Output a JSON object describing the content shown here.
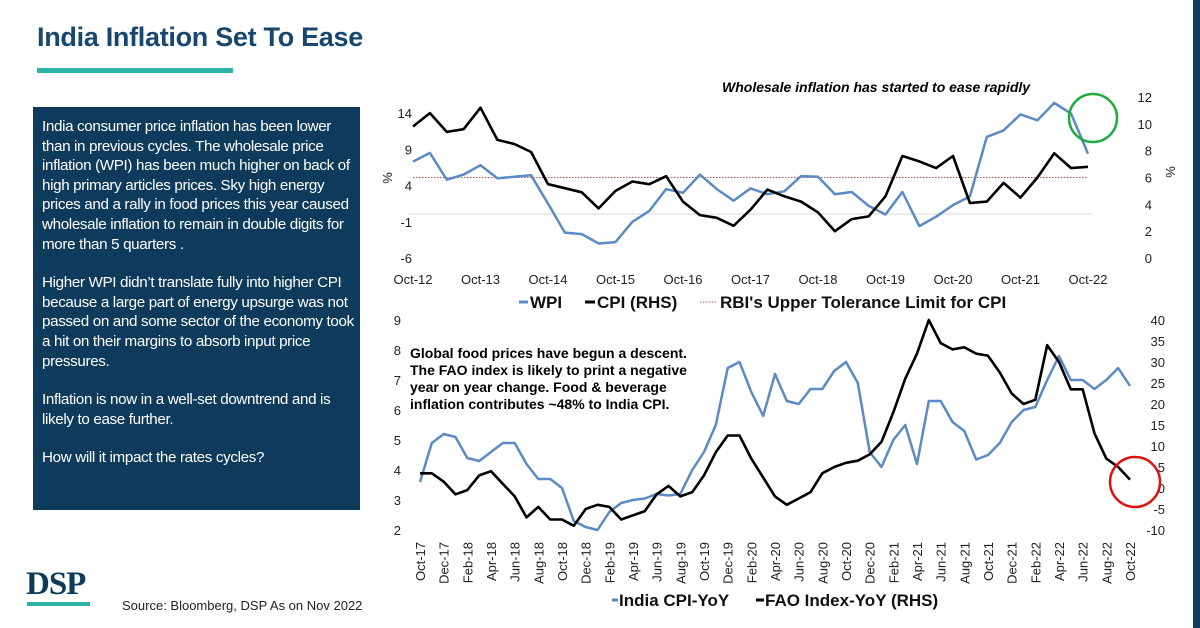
{
  "header": {
    "title": "India Inflation Set To Ease"
  },
  "panel": {
    "paragraphs": [
      "India consumer price inflation has been lower than in previous cycles. The wholesale price inflation (WPI) has been much higher on back of high primary articles prices. Sky high energy prices and a rally in food prices this year caused wholesale inflation to remain in double digits for more than 5 quarters .",
      "Higher WPI didn’t translate fully into higher CPI because a large part of energy upsurge was not passed on and some sector of the economy took a hit on their margins to absorb input price pressures.",
      "Inflation is now in a well-set downtrend and is likely to ease further.",
      "How will it impact the rates cycles?"
    ]
  },
  "footer": {
    "logo": "DSP",
    "source": "Source: Bloomberg, DSP As on Nov 2022"
  },
  "colors": {
    "blue": "#5b8ac4",
    "black": "#000000",
    "limit": "#c0504d",
    "green": "#1faa3c",
    "red": "#e01010",
    "navy": "#0e3a5c",
    "teal": "#2bb5a6"
  },
  "chart_data": [
    {
      "type": "line",
      "title": "Wholesale inflation has started to ease rapidly",
      "frequency": "quarterly samples, Oct-12 to Oct-22",
      "x_tick_labels": [
        "Oct-12",
        "Oct-13",
        "Oct-14",
        "Oct-15",
        "Oct-16",
        "Oct-17",
        "Oct-18",
        "Oct-19",
        "Oct-20",
        "Oct-21",
        "Oct-22"
      ],
      "ylabel": "%",
      "y2label": "%",
      "ylim": [
        -6,
        14
      ],
      "yticks": [
        -6,
        -1,
        4,
        9,
        14
      ],
      "y2lim": [
        0,
        12
      ],
      "y2ticks": [
        0,
        2,
        4,
        6,
        8,
        10,
        12
      ],
      "series": [
        {
          "name": "WPI",
          "axis": "left",
          "values": [
            7.3,
            8.5,
            4.8,
            5.5,
            6.8,
            5.0,
            5.2,
            5.4,
            1.5,
            -2.5,
            -2.7,
            -4.0,
            -3.8,
            -1.0,
            0.5,
            3.5,
            3.0,
            5.5,
            3.5,
            1.9,
            3.6,
            2.8,
            3.2,
            5.3,
            5.2,
            2.8,
            3.1,
            1.2,
            0.0,
            3.1,
            -1.6,
            -0.3,
            1.3,
            2.5,
            10.7,
            11.6,
            13.8,
            13.0,
            15.4,
            13.9,
            8.4
          ]
        },
        {
          "name": "CPI (RHS)",
          "axis": "right",
          "values": [
            9.8,
            10.8,
            9.4,
            9.6,
            11.2,
            8.8,
            8.5,
            7.9,
            5.5,
            5.2,
            4.9,
            3.7,
            5.0,
            5.7,
            5.5,
            6.1,
            4.2,
            3.2,
            3.0,
            2.4,
            3.6,
            5.1,
            4.6,
            4.2,
            3.4,
            2.0,
            2.9,
            3.1,
            4.6,
            7.6,
            7.2,
            6.7,
            7.6,
            4.1,
            4.2,
            5.6,
            4.5,
            6.0,
            7.8,
            6.7,
            6.8
          ]
        }
      ],
      "reference_line": {
        "name": "RBI's Upper Tolerance Limit for CPI",
        "axis": "right",
        "value": 6
      },
      "legend": [
        "WPI",
        "CPI (RHS)",
        "RBI's Upper Tolerance Limit for CPI"
      ],
      "legend_position": "bottom"
    },
    {
      "type": "line",
      "frequency": "monthly, Oct-17 to Oct-22",
      "annotation": [
        "Global food prices have begun a descent.",
        "The FAO index is likely to print a negative",
        "year on year change. Food & beverage",
        "inflation contributes ~48% to India CPI."
      ],
      "x_tick_labels": [
        "Oct-17",
        "Dec-17",
        "Feb-18",
        "Apr-18",
        "Jun-18",
        "Aug-18",
        "Oct-18",
        "Dec-18",
        "Feb-19",
        "Apr-19",
        "Jun-19",
        "Aug-19",
        "Oct-19",
        "Dec-19",
        "Feb-20",
        "Apr-20",
        "Jun-20",
        "Aug-20",
        "Oct-20",
        "Dec-20",
        "Feb-21",
        "Apr-21",
        "Jun-21",
        "Aug-21",
        "Oct-21",
        "Dec-21",
        "Feb-22",
        "Apr-22",
        "Jun-22",
        "Aug-22",
        "Oct-22"
      ],
      "ylim": [
        2,
        9
      ],
      "yticks": [
        2,
        3,
        4,
        5,
        6,
        7,
        8,
        9
      ],
      "y2lim": [
        -10,
        40
      ],
      "y2ticks": [
        -10,
        -5,
        0,
        5,
        10,
        15,
        20,
        25,
        30,
        35,
        40
      ],
      "series": [
        {
          "name": "India CPI-YoY",
          "axis": "left",
          "values": [
            3.6,
            4.9,
            5.2,
            5.1,
            4.4,
            4.3,
            4.6,
            4.9,
            4.9,
            4.2,
            3.7,
            3.7,
            3.4,
            2.3,
            2.1,
            2.0,
            2.6,
            2.9,
            3.0,
            3.05,
            3.2,
            3.15,
            3.2,
            4.0,
            4.6,
            5.5,
            7.4,
            7.6,
            6.6,
            5.8,
            7.2,
            6.3,
            6.2,
            6.7,
            6.7,
            7.3,
            7.6,
            6.9,
            4.6,
            4.1,
            5.0,
            5.5,
            4.2,
            6.3,
            6.3,
            5.6,
            5.3,
            4.35,
            4.5,
            4.9,
            5.6,
            6.0,
            6.1,
            7.0,
            7.8,
            7.0,
            7.0,
            6.7,
            7.0,
            7.4,
            6.8
          ]
        },
        {
          "name": "FAO Index-YoY (RHS)",
          "axis": "right",
          "values": [
            3.5,
            3.5,
            1.5,
            -1.5,
            -0.5,
            3,
            4,
            1,
            -2,
            -7,
            -4.5,
            -7.5,
            -7.5,
            -9,
            -5,
            -4,
            -4.5,
            -7.5,
            -6.5,
            -5.5,
            -1.5,
            0.5,
            -2,
            -1,
            3,
            8.5,
            12.5,
            12.5,
            7,
            2.5,
            -2,
            -4,
            -2.5,
            -1,
            3.5,
            5,
            6,
            6.5,
            8,
            11,
            18,
            26,
            32,
            40,
            34.5,
            33,
            33.5,
            32,
            31.5,
            27.5,
            22.5,
            20,
            21,
            34,
            30,
            23.5,
            23.5,
            13,
            7,
            5,
            2
          ]
        }
      ],
      "legend": [
        "India CPI-YoY",
        "FAO Index-YoY (RHS)"
      ],
      "legend_position": "bottom"
    }
  ]
}
